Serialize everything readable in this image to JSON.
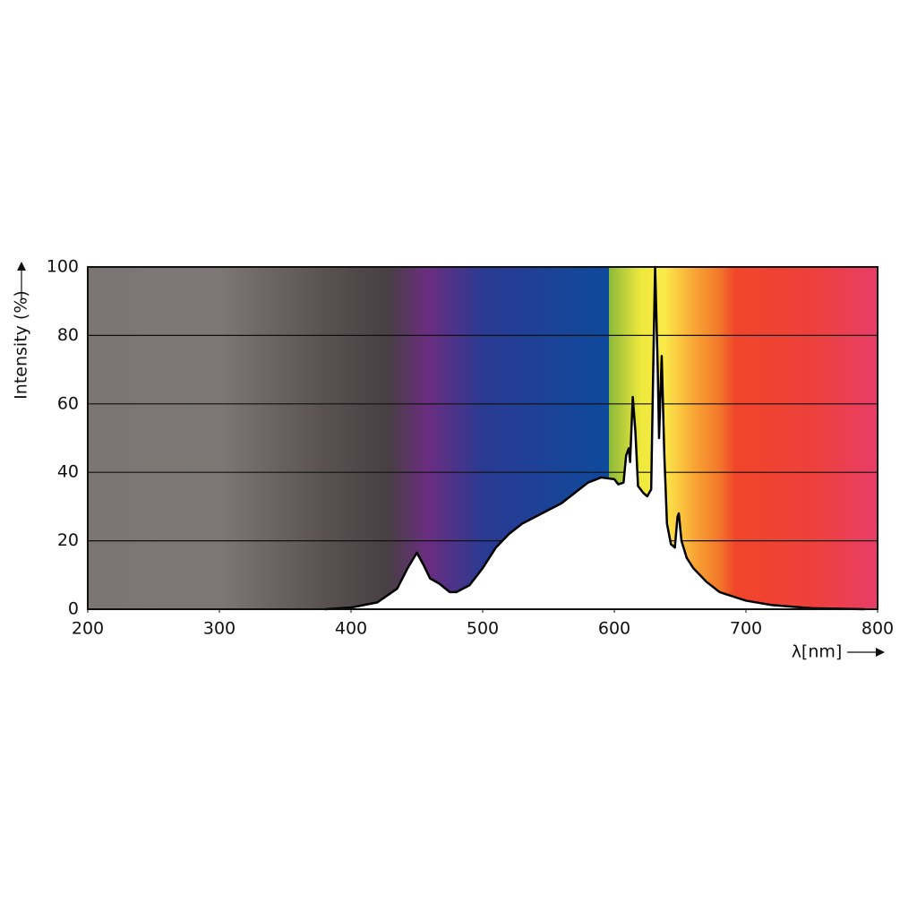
{
  "chart_data": {
    "type": "area",
    "ylabel": "Intensity (%)",
    "xlabel": "λ[nm]",
    "xlim": [
      200,
      800
    ],
    "ylim": [
      0,
      100
    ],
    "xticks": [
      200,
      300,
      400,
      500,
      600,
      700,
      800
    ],
    "yticks": [
      0,
      20,
      40,
      60,
      80,
      100
    ],
    "grid": true,
    "x": [
      380,
      400,
      420,
      435,
      443,
      450,
      455,
      460,
      467,
      475,
      480,
      490,
      500,
      510,
      520,
      530,
      540,
      550,
      560,
      570,
      580,
      590,
      600,
      603,
      607,
      609,
      611,
      612,
      614,
      616,
      618,
      622,
      625,
      628,
      630,
      631,
      633,
      634,
      636,
      638,
      640,
      643,
      646,
      648,
      649,
      651,
      655,
      660,
      670,
      680,
      700,
      720,
      750,
      790
    ],
    "values": [
      0,
      0.5,
      2,
      6,
      12,
      16.5,
      13,
      9,
      7.5,
      5,
      5,
      7,
      12,
      18,
      22,
      25,
      27,
      29,
      31,
      34,
      37,
      38.5,
      38,
      36.5,
      37,
      45,
      47,
      43,
      62,
      52,
      36,
      34,
      33,
      35,
      80,
      100,
      70,
      50,
      74,
      45,
      25,
      19,
      18,
      27,
      28,
      20,
      15,
      12,
      8,
      5,
      2.5,
      1.2,
      0.3,
      0
    ],
    "color": "#000000"
  }
}
